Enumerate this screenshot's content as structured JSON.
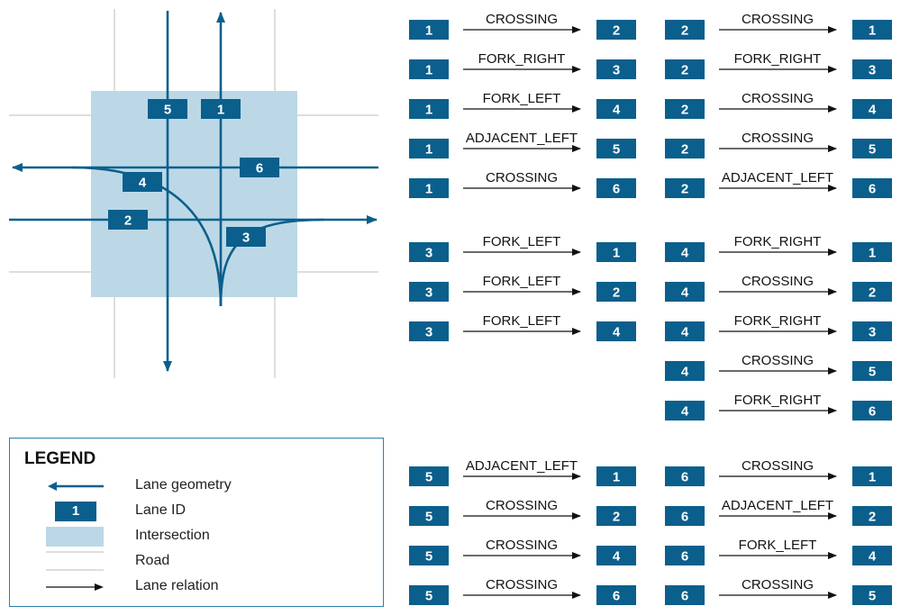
{
  "colors": {
    "lane": "#0b5f8c",
    "box": "#0b5f8c",
    "intersection": "#bcd8e6",
    "road": "#c9c9c9",
    "arrow": "#111111"
  },
  "intersection_lanes": [
    {
      "id": "1"
    },
    {
      "id": "2"
    },
    {
      "id": "3"
    },
    {
      "id": "4"
    },
    {
      "id": "5"
    },
    {
      "id": "6"
    }
  ],
  "relation_groups": [
    {
      "rows": [
        {
          "from": "1",
          "relation": "CROSSING",
          "to": "2"
        },
        {
          "from": "1",
          "relation": "FORK_RIGHT",
          "to": "3"
        },
        {
          "from": "1",
          "relation": "FORK_LEFT",
          "to": "4"
        },
        {
          "from": "1",
          "relation": "ADJACENT_LEFT",
          "to": "5"
        },
        {
          "from": "1",
          "relation": "CROSSING",
          "to": "6"
        }
      ]
    },
    {
      "rows": [
        {
          "from": "2",
          "relation": "CROSSING",
          "to": "1"
        },
        {
          "from": "2",
          "relation": "FORK_RIGHT",
          "to": "3"
        },
        {
          "from": "2",
          "relation": "CROSSING",
          "to": "4"
        },
        {
          "from": "2",
          "relation": "CROSSING",
          "to": "5"
        },
        {
          "from": "2",
          "relation": "ADJACENT_LEFT",
          "to": "6"
        }
      ]
    },
    {
      "rows": [
        {
          "from": "3",
          "relation": "FORK_LEFT",
          "to": "1"
        },
        {
          "from": "3",
          "relation": "FORK_LEFT",
          "to": "2"
        },
        {
          "from": "3",
          "relation": "FORK_LEFT",
          "to": "4"
        }
      ]
    },
    {
      "rows": [
        {
          "from": "4",
          "relation": "FORK_RIGHT",
          "to": "1"
        },
        {
          "from": "4",
          "relation": "CROSSING",
          "to": "2"
        },
        {
          "from": "4",
          "relation": "FORK_RIGHT",
          "to": "3"
        },
        {
          "from": "4",
          "relation": "CROSSING",
          "to": "5"
        },
        {
          "from": "4",
          "relation": "FORK_RIGHT",
          "to": "6"
        }
      ]
    },
    {
      "rows": [
        {
          "from": "5",
          "relation": "ADJACENT_LEFT",
          "to": "1"
        },
        {
          "from": "5",
          "relation": "CROSSING",
          "to": "2"
        },
        {
          "from": "5",
          "relation": "CROSSING",
          "to": "4"
        },
        {
          "from": "5",
          "relation": "CROSSING",
          "to": "6"
        }
      ]
    },
    {
      "rows": [
        {
          "from": "6",
          "relation": "CROSSING",
          "to": "1"
        },
        {
          "from": "6",
          "relation": "ADJACENT_LEFT",
          "to": "2"
        },
        {
          "from": "6",
          "relation": "FORK_LEFT",
          "to": "4"
        },
        {
          "from": "6",
          "relation": "CROSSING",
          "to": "5"
        }
      ]
    }
  ],
  "legend": {
    "title": "LEGEND",
    "items": [
      {
        "label": "Lane geometry",
        "icon": "lane-geometry-arrow-icon"
      },
      {
        "label": "Lane ID",
        "icon": "lane-id-box-icon",
        "sample": "1"
      },
      {
        "label": "Intersection",
        "icon": "intersection-swatch-icon"
      },
      {
        "label": "Road",
        "icon": "road-lines-icon"
      },
      {
        "label": "Lane relation",
        "icon": "lane-relation-arrow-icon"
      }
    ]
  }
}
